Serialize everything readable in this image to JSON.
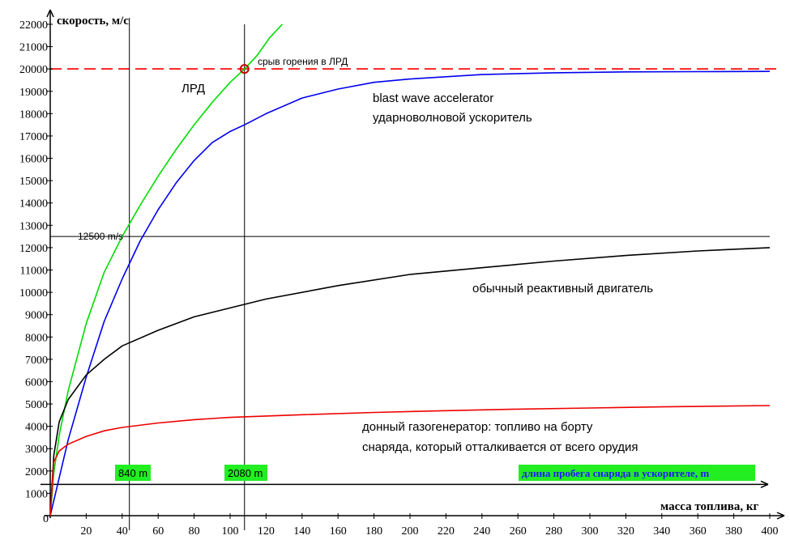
{
  "chart_data": {
    "type": "line",
    "title": "",
    "xlabel": "масса топлива, кг",
    "ylabel": "скорость, м/с",
    "xlim": [
      0,
      400
    ],
    "ylim": [
      0,
      22000
    ],
    "x_ticks": [
      20,
      40,
      60,
      80,
      100,
      120,
      140,
      160,
      180,
      200,
      220,
      240,
      260,
      280,
      300,
      320,
      340,
      360,
      380,
      400
    ],
    "y_ticks": [
      1000,
      2000,
      3000,
      4000,
      5000,
      6000,
      7000,
      8000,
      9000,
      10000,
      11000,
      12000,
      13000,
      14000,
      15000,
      16000,
      17000,
      18000,
      19000,
      20000,
      21000,
      22000
    ],
    "origin_label": "0",
    "grid": false,
    "series": [
      {
        "color": "#00dd00",
        "x": [
          0,
          2,
          5,
          10,
          20,
          30,
          40,
          50,
          60,
          70,
          80,
          90,
          100,
          108,
          115,
          122,
          129
        ],
        "y": [
          0,
          1900,
          3600,
          5600,
          8600,
          10900,
          12500,
          13900,
          15200,
          16400,
          17500,
          18500,
          19400,
          20000,
          20600,
          21400,
          22000
        ]
      },
      {
        "color": "#0000ee",
        "x": [
          0,
          10,
          20,
          30,
          40,
          50,
          60,
          70,
          80,
          90,
          100,
          108,
          120,
          140,
          160,
          180,
          200,
          240,
          280,
          320,
          360,
          400
        ],
        "y": [
          0,
          3400,
          6200,
          8700,
          10600,
          12300,
          13700,
          14900,
          15900,
          16700,
          17200,
          17500,
          18000,
          18700,
          19100,
          19400,
          19550,
          19750,
          19830,
          19870,
          19880,
          19890
        ]
      },
      {
        "color": "#000000",
        "x": [
          0,
          2,
          5,
          10,
          20,
          30,
          40,
          60,
          80,
          100,
          120,
          160,
          200,
          240,
          280,
          320,
          360,
          400
        ],
        "y": [
          0,
          2700,
          4200,
          5200,
          6300,
          7000,
          7600,
          8300,
          8900,
          9300,
          9700,
          10300,
          10800,
          11100,
          11400,
          11650,
          11850,
          12000
        ]
      },
      {
        "color": "#ee0000",
        "x": [
          0,
          2,
          5,
          10,
          20,
          30,
          40,
          60,
          80,
          100,
          140,
          180,
          220,
          260,
          300,
          340,
          400
        ],
        "y": [
          0,
          2400,
          2900,
          3200,
          3550,
          3800,
          3950,
          4150,
          4300,
          4400,
          4520,
          4620,
          4700,
          4770,
          4820,
          4870,
          4930
        ]
      }
    ],
    "reference_lines": {
      "h_dashed_red": 20000,
      "h_black": 12500,
      "h_black_label": "12500 m/s",
      "v_left": 44,
      "v_right": 108,
      "h_arrow": 1400
    },
    "marker": {
      "x": 108,
      "y": 20000,
      "color": "#cc0000",
      "label": "срыв горения в ЛРД"
    },
    "annotations": {
      "lrd": "ЛРД",
      "blast_en": "blast wave accelerator",
      "blast_ru": "ударноволновой ускоритель",
      "conventional": "обычный реактивный двигатель",
      "gasgen_1": "донный газогенератор: топливо на борту",
      "gasgen_2": "снаряда, который отталкивается от всего орудия"
    },
    "boxes": {
      "box_840": "840 m",
      "box_2080": "2080 m",
      "box_run": "длина пробега снаряда в ускорителе, m",
      "box_color": "#22ee22"
    }
  }
}
